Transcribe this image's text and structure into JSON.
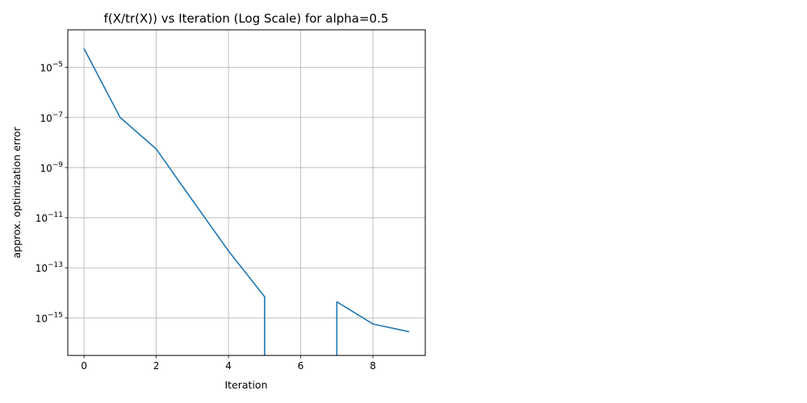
{
  "chart_data": {
    "type": "line",
    "title": "f(X/tr(X)) vs Iteration (Log Scale) for alpha=0.5",
    "xlabel": "Iteration",
    "ylabel": "approx. optimization error",
    "yscale": "log",
    "xlim": [
      -0.45,
      9.45
    ],
    "ylim_exp": [
      -16.5,
      -3.5
    ],
    "grid": true,
    "xticks": [
      0,
      2,
      4,
      6,
      8
    ],
    "yticks_exp": [
      -5,
      -7,
      -9,
      -11,
      -13,
      -15
    ],
    "ytick_base": "10",
    "line_color": "#1f77b4",
    "series": [
      {
        "x": [
          0,
          1,
          2,
          3,
          4,
          5,
          5,
          7,
          7,
          8,
          9
        ],
        "y": [
          5.6e-05,
          1e-07,
          5.5e-09,
          5e-11,
          4.7e-13,
          7e-15,
          0,
          0,
          4.4e-15,
          5.7e-16,
          2.8e-16
        ]
      }
    ]
  }
}
